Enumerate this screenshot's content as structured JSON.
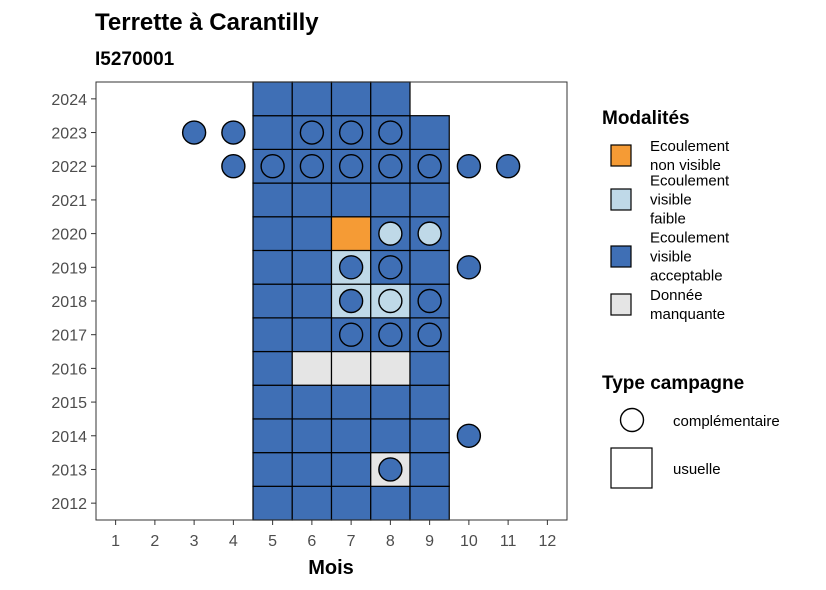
{
  "chart_data": {
    "type": "heatmap",
    "title": "Terrette à Carantilly",
    "subtitle": "I5270001",
    "xlabel": "Mois",
    "ylabel": "",
    "x_ticks": [
      "1",
      "2",
      "3",
      "4",
      "5",
      "6",
      "7",
      "8",
      "9",
      "10",
      "11",
      "12"
    ],
    "y_ticks": [
      "2012",
      "2013",
      "2014",
      "2015",
      "2016",
      "2017",
      "2018",
      "2019",
      "2020",
      "2021",
      "2022",
      "2023",
      "2024"
    ],
    "xlim": [
      0.5,
      12.5
    ],
    "ylim": [
      2011.5,
      2024.5
    ],
    "grid": false,
    "colors": {
      "non_visible": "#F59B35",
      "faible": "#BFD9E8",
      "acceptable": "#3F6FB5",
      "manquante": "#E5E5E5"
    },
    "legend": {
      "placement": "right",
      "modalites_title": "Modalités",
      "modalites": [
        {
          "key": "non_visible",
          "lines": [
            "Ecoulement",
            "non visible"
          ]
        },
        {
          "key": "faible",
          "lines": [
            "Ecoulement",
            "visible",
            "faible"
          ]
        },
        {
          "key": "acceptable",
          "lines": [
            "Ecoulement",
            "visible",
            "acceptable"
          ]
        },
        {
          "key": "manquante",
          "lines": [
            "Donnée",
            "manquante"
          ]
        }
      ],
      "type_title": "Type campagne",
      "types": [
        {
          "key": "complementaire",
          "label": "complémentaire",
          "shape": "circle"
        },
        {
          "key": "usuelle",
          "label": "usuelle",
          "shape": "square"
        }
      ]
    },
    "usuelle": [
      [
        2012,
        5,
        "acceptable"
      ],
      [
        2012,
        6,
        "acceptable"
      ],
      [
        2012,
        7,
        "acceptable"
      ],
      [
        2012,
        8,
        "acceptable"
      ],
      [
        2012,
        9,
        "acceptable"
      ],
      [
        2013,
        5,
        "acceptable"
      ],
      [
        2013,
        6,
        "acceptable"
      ],
      [
        2013,
        7,
        "acceptable"
      ],
      [
        2013,
        8,
        "manquante"
      ],
      [
        2013,
        9,
        "acceptable"
      ],
      [
        2014,
        5,
        "acceptable"
      ],
      [
        2014,
        6,
        "acceptable"
      ],
      [
        2014,
        7,
        "acceptable"
      ],
      [
        2014,
        8,
        "acceptable"
      ],
      [
        2014,
        9,
        "acceptable"
      ],
      [
        2015,
        5,
        "acceptable"
      ],
      [
        2015,
        6,
        "acceptable"
      ],
      [
        2015,
        7,
        "acceptable"
      ],
      [
        2015,
        8,
        "acceptable"
      ],
      [
        2015,
        9,
        "acceptable"
      ],
      [
        2016,
        5,
        "acceptable"
      ],
      [
        2016,
        6,
        "manquante"
      ],
      [
        2016,
        7,
        "manquante"
      ],
      [
        2016,
        8,
        "manquante"
      ],
      [
        2016,
        9,
        "acceptable"
      ],
      [
        2017,
        5,
        "acceptable"
      ],
      [
        2017,
        6,
        "acceptable"
      ],
      [
        2017,
        7,
        "acceptable"
      ],
      [
        2017,
        8,
        "acceptable"
      ],
      [
        2017,
        9,
        "acceptable"
      ],
      [
        2018,
        5,
        "acceptable"
      ],
      [
        2018,
        6,
        "acceptable"
      ],
      [
        2018,
        7,
        "faible"
      ],
      [
        2018,
        8,
        "faible"
      ],
      [
        2018,
        9,
        "acceptable"
      ],
      [
        2019,
        5,
        "acceptable"
      ],
      [
        2019,
        6,
        "acceptable"
      ],
      [
        2019,
        7,
        "faible"
      ],
      [
        2019,
        8,
        "acceptable"
      ],
      [
        2019,
        9,
        "acceptable"
      ],
      [
        2020,
        5,
        "acceptable"
      ],
      [
        2020,
        6,
        "acceptable"
      ],
      [
        2020,
        7,
        "non_visible"
      ],
      [
        2020,
        8,
        "acceptable"
      ],
      [
        2020,
        9,
        "acceptable"
      ],
      [
        2021,
        5,
        "acceptable"
      ],
      [
        2021,
        6,
        "acceptable"
      ],
      [
        2021,
        7,
        "acceptable"
      ],
      [
        2021,
        8,
        "acceptable"
      ],
      [
        2021,
        9,
        "acceptable"
      ],
      [
        2022,
        5,
        "acceptable"
      ],
      [
        2022,
        6,
        "acceptable"
      ],
      [
        2022,
        7,
        "acceptable"
      ],
      [
        2022,
        8,
        "acceptable"
      ],
      [
        2022,
        9,
        "acceptable"
      ],
      [
        2023,
        5,
        "acceptable"
      ],
      [
        2023,
        6,
        "acceptable"
      ],
      [
        2023,
        7,
        "acceptable"
      ],
      [
        2023,
        8,
        "acceptable"
      ],
      [
        2023,
        9,
        "acceptable"
      ],
      [
        2024,
        5,
        "acceptable"
      ],
      [
        2024,
        6,
        "acceptable"
      ],
      [
        2024,
        7,
        "acceptable"
      ],
      [
        2024,
        8,
        "acceptable"
      ]
    ],
    "complementaire": [
      [
        2013,
        8,
        "acceptable"
      ],
      [
        2014,
        10,
        "acceptable"
      ],
      [
        2017,
        7,
        "acceptable"
      ],
      [
        2017,
        8,
        "acceptable"
      ],
      [
        2017,
        9,
        "acceptable"
      ],
      [
        2018,
        7,
        "acceptable"
      ],
      [
        2018,
        8,
        "faible"
      ],
      [
        2018,
        9,
        "acceptable"
      ],
      [
        2019,
        7,
        "acceptable"
      ],
      [
        2019,
        8,
        "acceptable"
      ],
      [
        2019,
        10,
        "acceptable"
      ],
      [
        2020,
        8,
        "faible"
      ],
      [
        2020,
        9,
        "faible"
      ],
      [
        2022,
        4,
        "acceptable"
      ],
      [
        2022,
        5,
        "acceptable"
      ],
      [
        2022,
        6,
        "acceptable"
      ],
      [
        2022,
        7,
        "acceptable"
      ],
      [
        2022,
        8,
        "acceptable"
      ],
      [
        2022,
        9,
        "acceptable"
      ],
      [
        2022,
        10,
        "acceptable"
      ],
      [
        2022,
        11,
        "acceptable"
      ],
      [
        2023,
        3,
        "acceptable"
      ],
      [
        2023,
        4,
        "acceptable"
      ],
      [
        2023,
        6,
        "acceptable"
      ],
      [
        2023,
        7,
        "acceptable"
      ],
      [
        2023,
        8,
        "acceptable"
      ]
    ]
  }
}
